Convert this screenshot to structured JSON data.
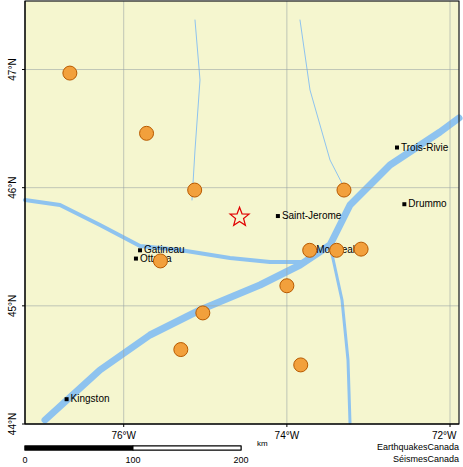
{
  "chart_data": {
    "type": "scatter",
    "xlim": [
      -77.21,
      -71.89
    ],
    "ylim": [
      44,
      47.58
    ],
    "xticks": [
      {
        "value": -76,
        "label": "76°W"
      },
      {
        "value": -74,
        "label": "74°W"
      },
      {
        "value": -72,
        "label": "72°W"
      }
    ],
    "yticks": [
      {
        "value": 44,
        "label": "44°N"
      },
      {
        "value": 45,
        "label": "45°N"
      },
      {
        "value": 46,
        "label": "46°N"
      },
      {
        "value": 47,
        "label": "47°N"
      }
    ],
    "grid": true,
    "series": [
      {
        "type": "scatter",
        "marker": "circle",
        "color": "#f2a03c",
        "x": [
          -76.66,
          -75.72,
          -75.13,
          -75.55,
          -75.03,
          -75.3,
          -74.0,
          -73.83,
          -73.72,
          -73.39,
          -73.09,
          -73.3
        ],
        "y": [
          46.97,
          46.46,
          45.98,
          45.38,
          44.94,
          44.63,
          45.17,
          44.5,
          45.47,
          45.47,
          45.48,
          45.98
        ]
      },
      {
        "type": "scatter",
        "marker": "star",
        "color": "#e00000",
        "x": [
          -74.58
        ],
        "y": [
          45.75
        ]
      }
    ],
    "annotations": [
      {
        "text": "Gatineau",
        "x": -75.8,
        "y": 45.47
      },
      {
        "text": "Ottawa",
        "x": -75.85,
        "y": 45.4
      },
      {
        "text": "Saint-Jerome",
        "x": -74.11,
        "y": 45.76
      },
      {
        "text": "Montreal",
        "x": -73.69,
        "y": 45.47
      },
      {
        "text": "Trois-Rivie",
        "x": -72.65,
        "y": 46.34
      },
      {
        "text": "Drummo",
        "x": -72.56,
        "y": 45.86
      },
      {
        "text": "Kingston",
        "x": -76.7,
        "y": 44.21
      }
    ],
    "scale_bar": {
      "ticks": [
        0,
        100,
        200
      ],
      "unit": "km"
    },
    "source": [
      "EarthquakesCanada",
      "SéismesCanada"
    ]
  }
}
